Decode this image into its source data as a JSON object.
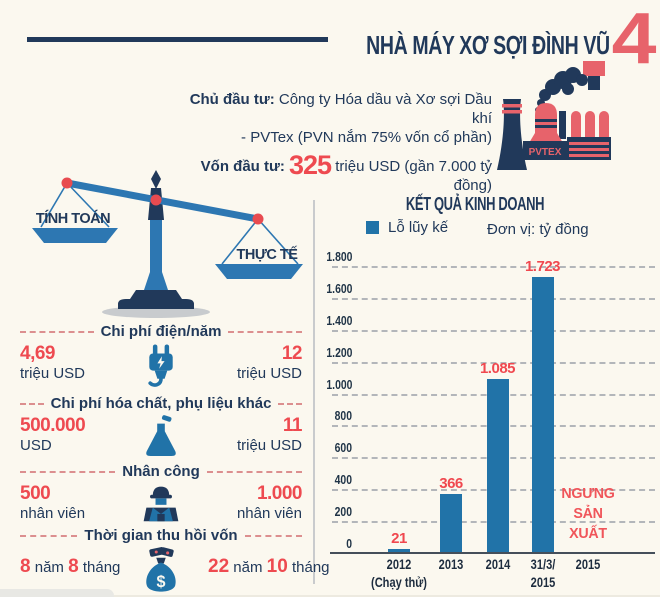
{
  "header": {
    "title": "NHÀ MÁY XƠ SỢI ĐÌNH VŨ",
    "number": "4",
    "investor_label": "Chủ đầu tư:",
    "investor_line1": "Công ty Hóa dầu và Xơ sợi Dầu khí",
    "investor_line2": "- PVTex (PVN nắm 75% vốn cổ phần)",
    "capital_label": "Vốn đầu tư:",
    "capital_value": "325",
    "capital_suffix": "triệu USD (gần 7.000 tỷ đồng)",
    "factory_logo": "PVTEX"
  },
  "scale": {
    "left_label": "TÍNH TOÁN",
    "right_label": "THỰC TẾ"
  },
  "comparisons": [
    {
      "title": "Chi phí điện/năm",
      "icon": "plug-icon",
      "left": {
        "value": "4,69",
        "unit": "triệu USD"
      },
      "right": {
        "value": "12",
        "unit": "triệu USD"
      }
    },
    {
      "title": "Chi phí hóa chất, phụ liệu khác",
      "icon": "flask-icon",
      "left": {
        "value": "500.000",
        "unit": "USD"
      },
      "right": {
        "value": "11",
        "unit": "triệu USD"
      }
    },
    {
      "title": "Nhân công",
      "icon": "worker-icon",
      "left": {
        "value": "500",
        "unit": "nhân viên"
      },
      "right": {
        "value": "1.000",
        "unit": "nhân viên"
      }
    },
    {
      "title": "Thời gian thu hồi vốn",
      "icon": "money-bag-icon",
      "left": {
        "n1": "8",
        "w1": " năm ",
        "n2": "8",
        "w2": " tháng"
      },
      "right": {
        "n1": "22",
        "w1": " năm ",
        "n2": "10",
        "w2": " tháng"
      }
    }
  ],
  "chart_data": {
    "type": "bar",
    "title": "KẾT QUẢ KINH DOANH",
    "legend": [
      {
        "label": "Lỗ lũy kế",
        "color": "#2173a8"
      }
    ],
    "unit_note": "Đơn vị: tỷ đồng",
    "categories": [
      "2012\n(Chạy thử)",
      "2013",
      "2014",
      "31/3/\n2015",
      "2015"
    ],
    "values": [
      21,
      366,
      1085,
      1723,
      null
    ],
    "value_labels": [
      "21",
      "366",
      "1.085",
      "1.723",
      null
    ],
    "annotation": {
      "index": 4,
      "lines": [
        "NGƯNG",
        "SẢN",
        "XUẤT"
      ],
      "color": "#f0555a"
    },
    "xlabel": "",
    "ylabel": "",
    "ylim": [
      0,
      1800
    ],
    "ytick_step": 200,
    "ytick_labels": [
      "0",
      "200",
      "400",
      "600",
      "800",
      "1.000",
      "1.200",
      "1.400",
      "1.600",
      "1.800"
    ],
    "grid": "dashed-horizontal"
  },
  "colors": {
    "navy": "#21395a",
    "red": "#ee4a50",
    "salmon": "#e7636b",
    "blue": "#2173a8",
    "beam_blue": "#2d77b2",
    "dash_red": "#dc8f8f",
    "grid_gray": "#b3b6ba",
    "background": "#fbf8ef"
  }
}
